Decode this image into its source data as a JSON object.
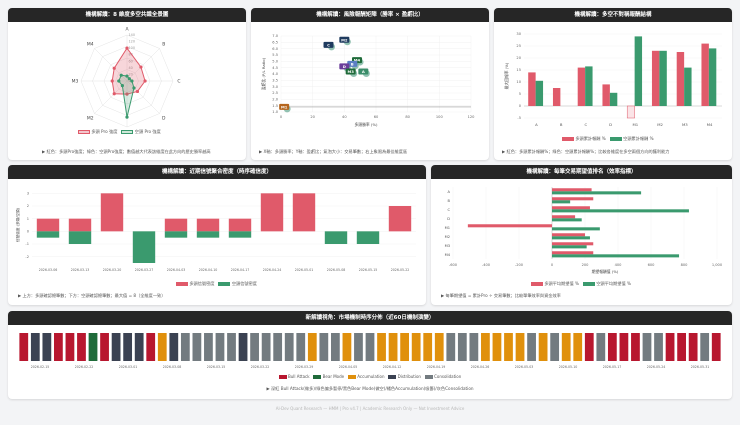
{
  "colors": {
    "bull": "#e05a6a",
    "bear": "#3a9a6e",
    "red": "#b8172f",
    "dark": "#3b4252",
    "green": "#1f6b3a",
    "orange": "#e0900c",
    "gray": "#737b80"
  },
  "radar": {
    "title": "機構解讀：8 維度多空共識全景圖",
    "axes": [
      "A",
      "B",
      "C",
      "D",
      "M1",
      "M2",
      "M3",
      "M4"
    ],
    "ticks": [
      "140",
      "120",
      "100",
      "80",
      "60",
      "40",
      "20",
      "0"
    ],
    "chart_data": {
      "type": "radar",
      "series": [
        {
          "name": "多頭 Pro 強度",
          "values": [
            100,
            60,
            55,
            45,
            40,
            55,
            45,
            55
          ]
        },
        {
          "name": "空頭 Pro 強度",
          "values": [
            15,
            10,
            15,
            30,
            110,
            20,
            25,
            25
          ]
        }
      ],
      "range": [
        0,
        140
      ]
    },
    "legend": [
      "多頭 Pro 強度",
      "空頭 Pro 強度"
    ],
    "note": "▶ 紅色：多頭Pro強度；綠色：空頭Pro強度；數值越大代表該維度在此方向的歷史勝率越高"
  },
  "scatter": {
    "title": "機構解讀：風險報酬矩陣（勝率 × 盈虧比）",
    "ylabel": "盈虧比 (P/L Ratio)",
    "xlabel": "多頭勝率 (%)",
    "yticks": [
      "7.0",
      "6.5",
      "6.0",
      "5.5",
      "5.0",
      "4.5",
      "4.0",
      "3.5",
      "3.0",
      "2.5",
      "2.0",
      "1.5",
      "1.0"
    ],
    "xticks": [
      "0",
      "20",
      "40",
      "60",
      "80",
      "100",
      "120"
    ],
    "chart_data": {
      "type": "scatter",
      "xlim": [
        0,
        120
      ],
      "ylim": [
        1,
        7
      ],
      "points": [
        {
          "label": "M2",
          "x": 40,
          "y": 6.7
        },
        {
          "label": "C",
          "x": 30,
          "y": 6.3
        },
        {
          "label": "M4",
          "x": 48,
          "y": 5.1
        },
        {
          "label": "B",
          "x": 45,
          "y": 4.8
        },
        {
          "label": "D",
          "x": 40,
          "y": 4.6
        },
        {
          "label": "M3",
          "x": 44,
          "y": 4.2
        },
        {
          "label": "A",
          "x": 52,
          "y": 4.2
        },
        {
          "label": "M1",
          "x": 2,
          "y": 1.4
        }
      ]
    },
    "note": "▶ X軸：多頭勝率；Y軸：盈虧比；氣泡大小：交易筆數；右上象限為最佳維度區"
  },
  "bars": {
    "title": "機構解讀：多空不對稱報酬結構",
    "ylabel": "最大回報率 (%)",
    "yticks": [
      "30",
      "25",
      "20",
      "15",
      "10",
      "5",
      "0",
      "-5"
    ],
    "chart_data": {
      "type": "bar",
      "categories": [
        "A",
        "B",
        "C",
        "D",
        "M1",
        "M2",
        "M3",
        "M4"
      ],
      "series": [
        {
          "name": "多頭累計報酬 %",
          "values": [
            14,
            7.5,
            16,
            9,
            -5,
            23,
            22.5,
            26
          ]
        },
        {
          "name": "空頭累計報酬 %",
          "values": [
            10.5,
            0,
            16.5,
            5.5,
            29,
            23,
            16,
            24
          ]
        }
      ],
      "ylim": [
        -5,
        30
      ]
    },
    "legend": [
      "多頭累計報酬 %",
      "空頭累計報酬 %"
    ],
    "note": "▶ 紅色：多頭累計報酬%；綠色：空頭累計報酬%；比較各維度在多空兩個方向的獲利能力"
  },
  "range": {
    "title": "機構解讀：近期信號聚合密度（時序確信度）",
    "ylabel": "信號強度 (多頭/空頭)",
    "yticks": [
      "3",
      "2",
      "1",
      "0",
      "-1",
      "-2"
    ],
    "chart_data": {
      "type": "bar",
      "categories": [
        "2026-03-06",
        "2026-03-13",
        "2026-03-20",
        "2026-03-27",
        "2026-04-03",
        "2026-04-10",
        "2026-04-17",
        "2026-04-24",
        "2026-05-01",
        "2026-05-08",
        "2026-05-15",
        "2026-05-22"
      ],
      "series": [
        {
          "name": "多頭信號密度",
          "values": [
            1,
            1,
            3,
            0,
            1,
            1,
            1,
            3,
            3,
            0,
            0,
            2
          ]
        },
        {
          "name": "空頭信號密度",
          "values": [
            -0.5,
            -1,
            0,
            -2.5,
            -0.5,
            -0.5,
            -0.5,
            0,
            0,
            -1,
            -1,
            0
          ]
        }
      ],
      "ylim": [
        -2.5,
        3.5
      ]
    },
    "legend": [
      "多頭信號密度",
      "空頭信號密度"
    ],
    "note": "▶ 上方：多頭確認總筆數；下方：空頭確認總筆數；最大值 = 8（全維度一致）"
  },
  "hbar": {
    "title": "機構解讀：每筆交易期望值排名（效率指標）",
    "xlabel": "期望報酬值 (%)",
    "xticks": [
      "-600",
      "-400",
      "-200",
      "0",
      "200",
      "400",
      "600",
      "800",
      "1,000"
    ],
    "chart_data": {
      "type": "bar",
      "orientation": "horizontal",
      "categories": [
        "A",
        "B",
        "C",
        "D",
        "M1",
        "M2",
        "M3",
        "M4"
      ],
      "series": [
        {
          "name": "多頭平均期望值 %",
          "values": [
            240,
            250,
            230,
            140,
            -510,
            200,
            250,
            250
          ]
        },
        {
          "name": "空頭平均期望值 %",
          "values": [
            540,
            110,
            830,
            180,
            290,
            230,
            210,
            770
          ]
        }
      ],
      "xlim": [
        -600,
        1000
      ]
    },
    "legend": [
      "多頭平均期望值 %",
      "空頭平均期望值 %"
    ],
    "note": "▶ 每筆期望值 = 累計Pro ÷ 交易筆數；比較單筆效率與資金效率"
  },
  "timeline": {
    "title": "新解讀視角：市場機制時序分佈（近60日機制演變）",
    "chart_data": {
      "type": "bar",
      "name": "regime sequence",
      "values": [
        "R",
        "D",
        "D",
        "R",
        "R",
        "R",
        "G",
        "R",
        "D",
        "D",
        "D",
        "R",
        "O",
        "D",
        "Y",
        "Y",
        "Y",
        "Y",
        "Y",
        "D",
        "Y",
        "Y",
        "Y",
        "Y",
        "Y",
        "O",
        "Y",
        "Y",
        "O",
        "Y",
        "Y",
        "O",
        "O",
        "O",
        "O",
        "O",
        "O",
        "Y",
        "Y",
        "Y",
        "O",
        "O",
        "O",
        "O",
        "Y",
        "O",
        "Y",
        "O",
        "O",
        "R",
        "Y",
        "R",
        "R",
        "R",
        "Y",
        "Y",
        "R",
        "R",
        "R",
        "Y",
        "R"
      ]
    },
    "dates": [
      "2026-02-15",
      "2026-02-22",
      "2026-03-01",
      "2026-03-08",
      "2026-03-15",
      "2026-03-22",
      "2026-03-29",
      "2026-04-05",
      "2026-04-12",
      "2026-04-19",
      "2026-04-26",
      "2026-05-03",
      "2026-05-10",
      "2026-05-17",
      "2026-05-24",
      "2026-05-31"
    ],
    "legend": [
      "Bull Attack",
      "Bear Mode",
      "Accumulation",
      "Distribution",
      "Consolidation"
    ],
    "note": "▶ 深紅 Bull Attack(做多)/綠色偏多暫停/黑色Bear Mode(做空)/橘色Accumulation(吸籌)/灰色Consolidation"
  },
  "footer": "Al-Dev Quant Research — HMM | Pro v4.7 | Academic Research Only — Not Investment Advice"
}
